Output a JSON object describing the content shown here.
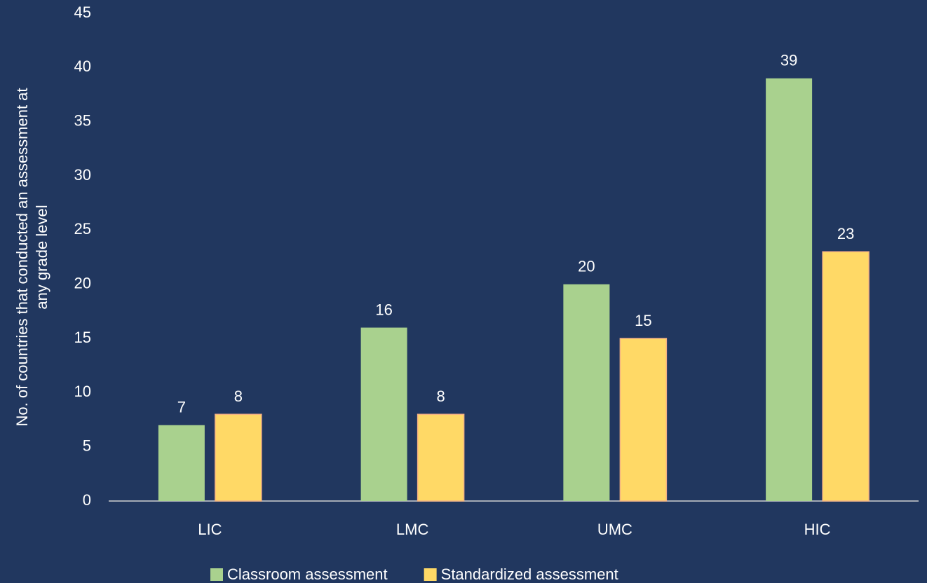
{
  "chart_data": {
    "type": "bar",
    "ylabel": [
      "No. of countries that conducted an assessment at",
      "any grade level"
    ],
    "categories": [
      "LIC",
      "LMC",
      "UMC",
      "HIC"
    ],
    "series": [
      {
        "name": "Classroom assessment",
        "color": "#a9d18e",
        "values": [
          7,
          16,
          20,
          39
        ]
      },
      {
        "name": "Standardized assessment",
        "color": "#ffd966",
        "values": [
          8,
          8,
          15,
          23
        ]
      }
    ],
    "ylim": [
      0,
      45
    ],
    "yticks": [
      0,
      5,
      10,
      15,
      20,
      25,
      30,
      35,
      40,
      45
    ],
    "grid": false,
    "legend": "bottom"
  }
}
